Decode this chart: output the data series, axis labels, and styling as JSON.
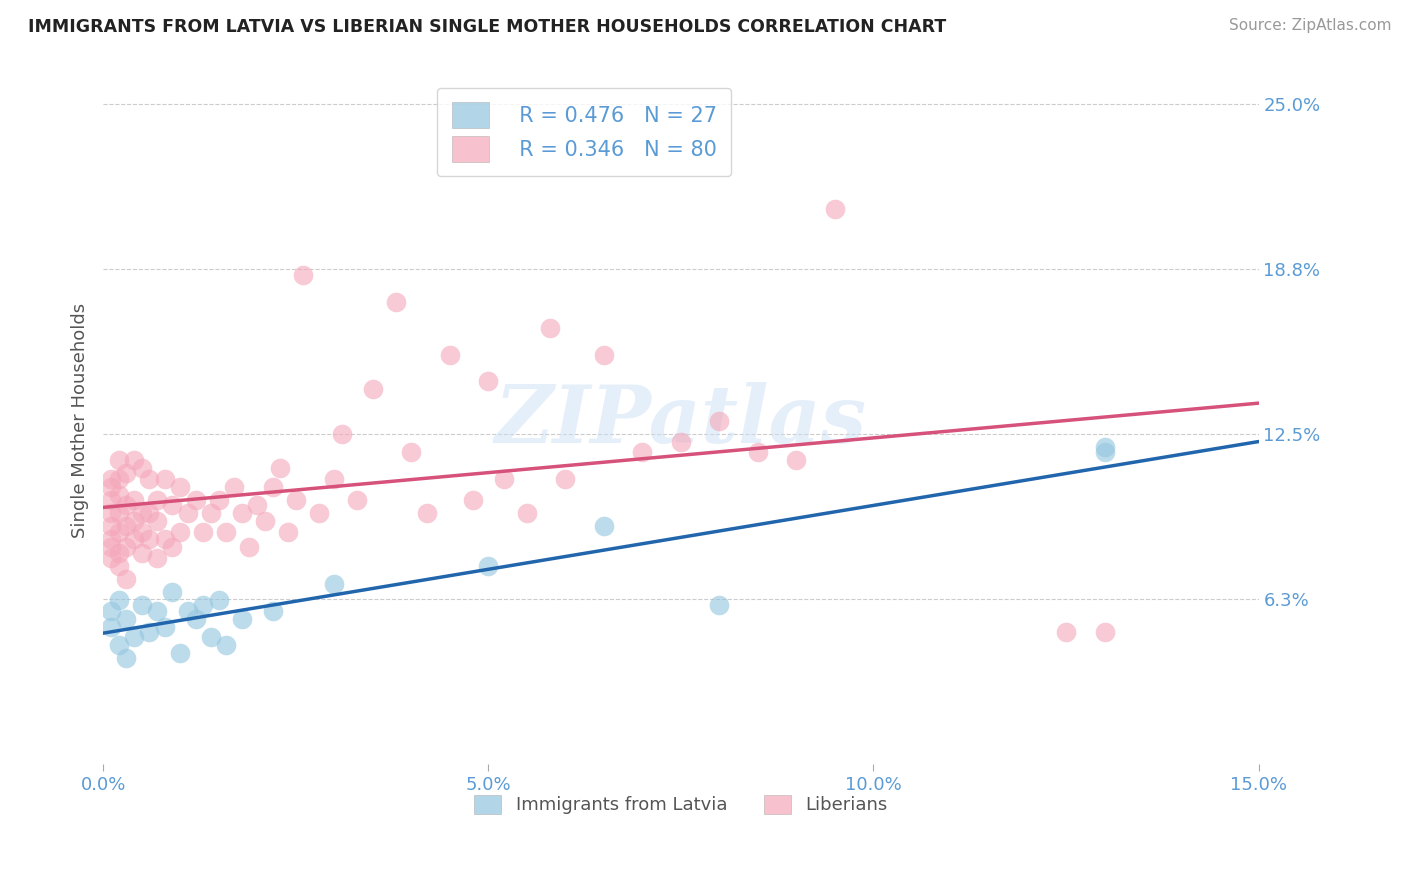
{
  "title": "IMMIGRANTS FROM LATVIA VS LIBERIAN SINGLE MOTHER HOUSEHOLDS CORRELATION CHART",
  "source": "Source: ZipAtlas.com",
  "ylabel": "Single Mother Households",
  "xlim": [
    0.0,
    0.15
  ],
  "ylim": [
    0.0,
    0.26
  ],
  "xticks": [
    0.0,
    0.05,
    0.1,
    0.15
  ],
  "xticklabels": [
    "0.0%",
    "5.0%",
    "10.0%",
    "15.0%"
  ],
  "ytick_values": [
    0.0625,
    0.125,
    0.1875,
    0.25
  ],
  "ytick_labels": [
    "6.3%",
    "12.5%",
    "18.8%",
    "25.0%"
  ],
  "legend_labels": [
    "Immigrants from Latvia",
    "Liberians"
  ],
  "legend_r_latvia": "R = 0.476",
  "legend_n_latvia": "N = 27",
  "legend_r_liberian": "R = 0.346",
  "legend_n_liberian": "N = 80",
  "color_latvia": "#92c5de",
  "color_liberian": "#f4a7b9",
  "color_latvia_line": "#2166ac",
  "color_liberian_line": "#d6527a",
  "background_color": "#ffffff",
  "grid_color": "#cccccc",
  "watermark": "ZIPatlas",
  "latvia_x": [
    0.001,
    0.001,
    0.002,
    0.002,
    0.003,
    0.003,
    0.004,
    0.005,
    0.006,
    0.007,
    0.008,
    0.009,
    0.01,
    0.011,
    0.012,
    0.013,
    0.014,
    0.015,
    0.016,
    0.018,
    0.022,
    0.03,
    0.05,
    0.065,
    0.08,
    0.13,
    0.13
  ],
  "latvia_y": [
    0.052,
    0.058,
    0.045,
    0.062,
    0.04,
    0.055,
    0.048,
    0.06,
    0.05,
    0.058,
    0.052,
    0.065,
    0.042,
    0.058,
    0.055,
    0.06,
    0.048,
    0.062,
    0.045,
    0.055,
    0.058,
    0.068,
    0.075,
    0.09,
    0.06,
    0.118,
    0.12
  ],
  "liberian_x": [
    0.001,
    0.001,
    0.001,
    0.001,
    0.001,
    0.001,
    0.001,
    0.001,
    0.002,
    0.002,
    0.002,
    0.002,
    0.002,
    0.002,
    0.002,
    0.003,
    0.003,
    0.003,
    0.003,
    0.003,
    0.004,
    0.004,
    0.004,
    0.004,
    0.005,
    0.005,
    0.005,
    0.005,
    0.006,
    0.006,
    0.006,
    0.007,
    0.007,
    0.007,
    0.008,
    0.008,
    0.009,
    0.009,
    0.01,
    0.01,
    0.011,
    0.012,
    0.013,
    0.014,
    0.015,
    0.016,
    0.017,
    0.018,
    0.019,
    0.02,
    0.021,
    0.022,
    0.023,
    0.024,
    0.025,
    0.026,
    0.028,
    0.03,
    0.031,
    0.033,
    0.035,
    0.038,
    0.04,
    0.042,
    0.045,
    0.048,
    0.05,
    0.052,
    0.055,
    0.058,
    0.06,
    0.065,
    0.07,
    0.075,
    0.08,
    0.085,
    0.09,
    0.095,
    0.125,
    0.13
  ],
  "liberian_y": [
    0.078,
    0.082,
    0.085,
    0.09,
    0.095,
    0.1,
    0.105,
    0.108,
    0.075,
    0.08,
    0.088,
    0.095,
    0.102,
    0.108,
    0.115,
    0.07,
    0.082,
    0.09,
    0.098,
    0.11,
    0.085,
    0.092,
    0.1,
    0.115,
    0.08,
    0.088,
    0.095,
    0.112,
    0.085,
    0.095,
    0.108,
    0.078,
    0.092,
    0.1,
    0.085,
    0.108,
    0.082,
    0.098,
    0.088,
    0.105,
    0.095,
    0.1,
    0.088,
    0.095,
    0.1,
    0.088,
    0.105,
    0.095,
    0.082,
    0.098,
    0.092,
    0.105,
    0.112,
    0.088,
    0.1,
    0.185,
    0.095,
    0.108,
    0.125,
    0.1,
    0.142,
    0.175,
    0.118,
    0.095,
    0.155,
    0.1,
    0.145,
    0.108,
    0.095,
    0.165,
    0.108,
    0.155,
    0.118,
    0.122,
    0.13,
    0.118,
    0.115,
    0.21,
    0.05,
    0.05
  ]
}
